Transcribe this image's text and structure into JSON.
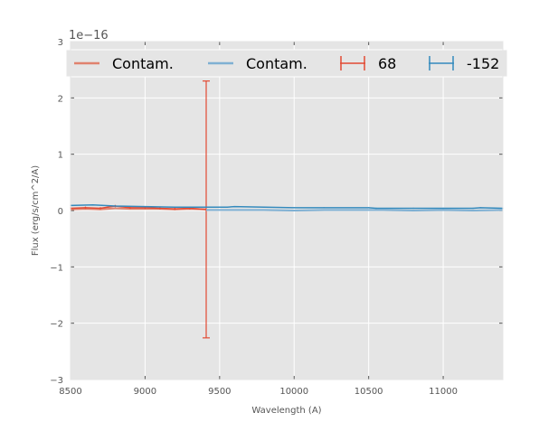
{
  "chart_data": {
    "type": "line",
    "title": "",
    "xlabel": "Wavelength (A)",
    "ylabel": "Flux (erg/s/cm^2/A)",
    "y_offset_label": "1e−16",
    "xlim": [
      8500,
      11400
    ],
    "ylim": [
      -3,
      3
    ],
    "x_ticks": [
      8500,
      9000,
      9500,
      10000,
      10500,
      11000
    ],
    "x_tick_labels": [
      "8500",
      "9000",
      "9500",
      "10000",
      "10500",
      "11000"
    ],
    "y_ticks": [
      -3,
      -2,
      -1,
      0,
      1,
      2,
      3
    ],
    "y_tick_labels": [
      "−3",
      "−2",
      "−1",
      "0",
      "1",
      "2",
      "3"
    ],
    "grid": true,
    "legend_placement": "top",
    "series": [
      {
        "name": "Contam.",
        "kind": "line",
        "color": "#e0826e",
        "x": [
          8500,
          8600,
          8700,
          8800,
          8900,
          9000,
          9100,
          9200,
          9300,
          9410
        ],
        "y": [
          0.02,
          0.03,
          0.02,
          0.04,
          0.03,
          0.03,
          0.03,
          0.02,
          0.03,
          0.02
        ]
      },
      {
        "name": "Contam.",
        "kind": "line",
        "color": "#7fb0d3",
        "x": [
          9410,
          9600,
          9800,
          10000,
          10200,
          10400,
          10600,
          10800,
          11000,
          11200,
          11400
        ],
        "y": [
          0.01,
          0.01,
          0.01,
          0.0,
          0.01,
          0.01,
          0.01,
          0.0,
          0.01,
          0.0,
          0.01
        ]
      },
      {
        "name": "68",
        "kind": "errorbar",
        "color": "#e24a33",
        "x": [
          8500,
          8600,
          8700,
          8800,
          8900,
          9000,
          9100,
          9200,
          9300,
          9410
        ],
        "y": [
          0.04,
          0.05,
          0.04,
          0.08,
          0.05,
          0.05,
          0.04,
          0.03,
          0.04,
          0.02
        ],
        "yerr": [
          0.02,
          0.02,
          0.02,
          0.02,
          0.02,
          0.02,
          0.02,
          0.02,
          0.02,
          2.28
        ]
      },
      {
        "name": "-152",
        "kind": "errorbar",
        "color": "#348abd",
        "x": [
          8500,
          8650,
          8800,
          9000,
          9200,
          9400,
          9550,
          9600,
          9800,
          10000,
          10200,
          10500,
          10550,
          10800,
          11000,
          11200,
          11250,
          11400
        ],
        "y": [
          0.09,
          0.1,
          0.08,
          0.07,
          0.06,
          0.06,
          0.06,
          0.07,
          0.06,
          0.05,
          0.05,
          0.05,
          0.04,
          0.04,
          0.04,
          0.04,
          0.05,
          0.04
        ],
        "yerr": [
          0.01,
          0.01,
          0.01,
          0.01,
          0.01,
          0.01,
          0.01,
          0.01,
          0.01,
          0.01,
          0.01,
          0.01,
          0.01,
          0.01,
          0.01,
          0.01,
          0.01,
          0.01
        ]
      }
    ]
  }
}
